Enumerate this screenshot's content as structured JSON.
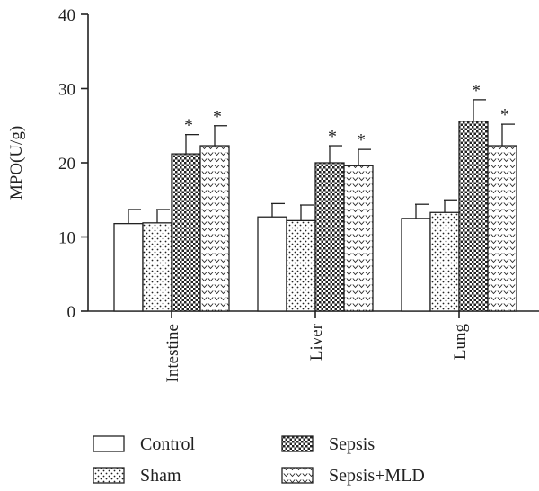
{
  "chart_data": {
    "type": "bar",
    "title": "",
    "xlabel": "",
    "ylabel": "MPO(U/g)",
    "ylim": [
      0,
      40
    ],
    "yticks": [
      0,
      10,
      20,
      30,
      40
    ],
    "categories": [
      "Intestine",
      "Liver",
      "Lung"
    ],
    "series": [
      {
        "name": "Control",
        "pattern": "plain",
        "values": [
          11.8,
          12.7,
          12.5
        ],
        "errors": [
          1.9,
          1.8,
          1.9
        ],
        "significant": [
          false,
          false,
          false
        ]
      },
      {
        "name": "Sham",
        "pattern": "dots",
        "values": [
          11.9,
          12.2,
          13.3
        ],
        "errors": [
          1.8,
          2.1,
          1.7
        ],
        "significant": [
          false,
          false,
          false
        ]
      },
      {
        "name": "Sepsis",
        "pattern": "checker",
        "values": [
          21.2,
          20.0,
          25.6
        ],
        "errors": [
          2.6,
          2.3,
          2.9
        ],
        "significant": [
          true,
          true,
          true
        ]
      },
      {
        "name": "Sepsis+MLD",
        "pattern": "chevron",
        "values": [
          22.3,
          19.6,
          22.3
        ],
        "errors": [
          2.7,
          2.2,
          2.9
        ],
        "significant": [
          true,
          true,
          true
        ]
      }
    ],
    "significance_marker": "*",
    "legend_position": "bottom",
    "grid": false
  },
  "colors": {
    "axis": "#222222",
    "bar_fill": "#ffffff",
    "pattern": "#222222"
  }
}
